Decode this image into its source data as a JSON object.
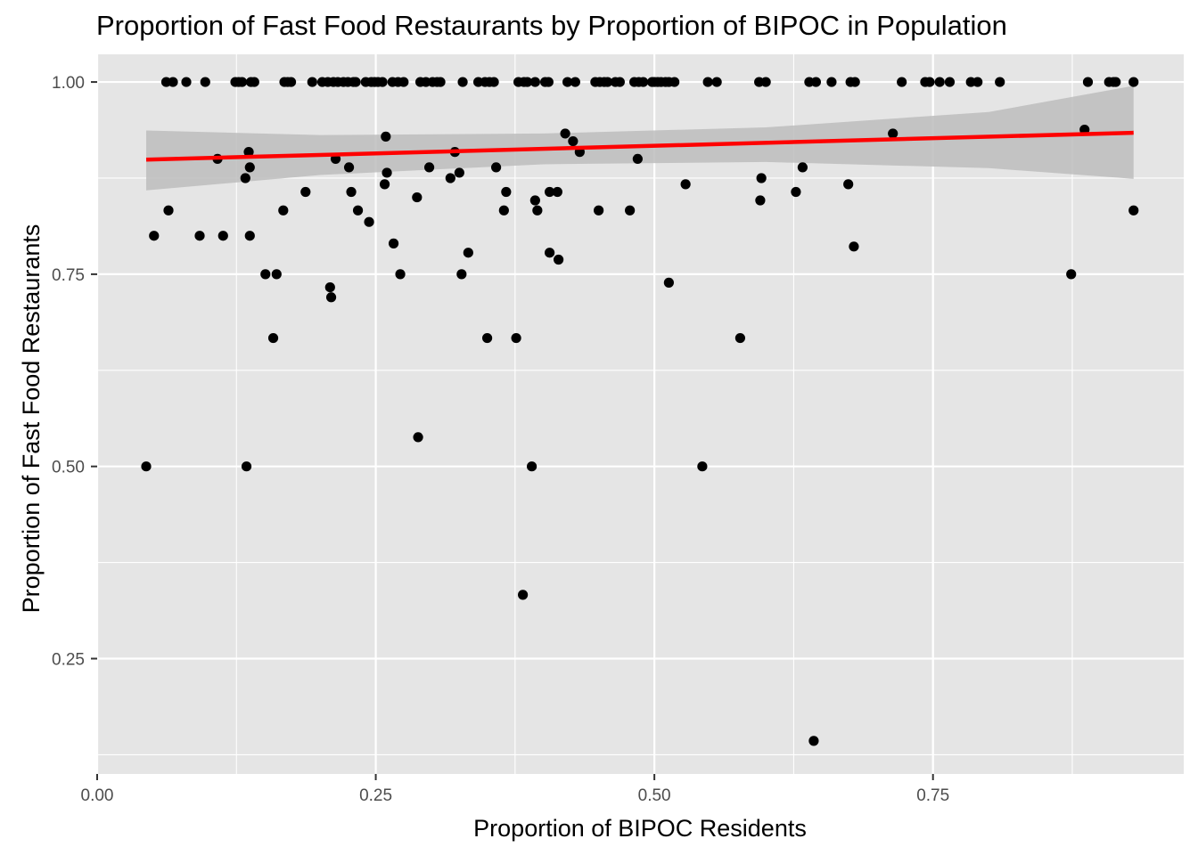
{
  "chart_data": {
    "type": "scatter",
    "title": "Proportion of Fast Food Restaurants by Proportion of BIPOC in Population",
    "xlabel": "Proportion of BIPOC Residents",
    "ylabel": "Proportion of Fast Food Restaurants",
    "xlim": [
      0,
      0.975
    ],
    "ylim": [
      0.1,
      1.036
    ],
    "x_ticks": [
      0.0,
      0.25,
      0.5,
      0.75
    ],
    "x_tick_labels": [
      "0.00",
      "0.25",
      "0.50",
      "0.75"
    ],
    "y_ticks": [
      0.25,
      0.5,
      0.75,
      1.0
    ],
    "y_tick_labels": [
      "0.25",
      "0.50",
      "0.75",
      "1.00"
    ],
    "grid": true,
    "legend": "none",
    "colors": {
      "panel_background": "#e5e5e5",
      "grid_major": "#ffffff",
      "points": "#000000",
      "fit_line": "#ff0000",
      "confidence_band": "#bdbdbd"
    },
    "fit_line": {
      "method": "linear",
      "x": [
        0.044,
        0.93
      ],
      "y": [
        0.899,
        0.934
      ]
    },
    "confidence_band": {
      "x": [
        0.044,
        0.2,
        0.4,
        0.6,
        0.8,
        0.93
      ],
      "lower": [
        0.859,
        0.879,
        0.893,
        0.896,
        0.888,
        0.874
      ],
      "upper": [
        0.937,
        0.931,
        0.933,
        0.941,
        0.961,
        0.995
      ]
    },
    "points": [
      {
        "x": 0.044,
        "y": 0.5
      },
      {
        "x": 0.051,
        "y": 0.8
      },
      {
        "x": 0.062,
        "y": 1.0
      },
      {
        "x": 0.064,
        "y": 0.833
      },
      {
        "x": 0.068,
        "y": 1.0
      },
      {
        "x": 0.08,
        "y": 1.0
      },
      {
        "x": 0.092,
        "y": 0.8
      },
      {
        "x": 0.097,
        "y": 1.0
      },
      {
        "x": 0.108,
        "y": 0.9
      },
      {
        "x": 0.113,
        "y": 0.8
      },
      {
        "x": 0.124,
        "y": 1.0
      },
      {
        "x": 0.127,
        "y": 1.0
      },
      {
        "x": 0.13,
        "y": 1.0
      },
      {
        "x": 0.133,
        "y": 0.875
      },
      {
        "x": 0.134,
        "y": 0.5
      },
      {
        "x": 0.136,
        "y": 0.909
      },
      {
        "x": 0.137,
        "y": 0.8
      },
      {
        "x": 0.137,
        "y": 0.889
      },
      {
        "x": 0.138,
        "y": 1.0
      },
      {
        "x": 0.141,
        "y": 1.0
      },
      {
        "x": 0.151,
        "y": 0.75
      },
      {
        "x": 0.158,
        "y": 0.667
      },
      {
        "x": 0.161,
        "y": 0.75
      },
      {
        "x": 0.167,
        "y": 0.833
      },
      {
        "x": 0.168,
        "y": 1.0
      },
      {
        "x": 0.171,
        "y": 1.0
      },
      {
        "x": 0.174,
        "y": 1.0
      },
      {
        "x": 0.187,
        "y": 0.857
      },
      {
        "x": 0.193,
        "y": 1.0
      },
      {
        "x": 0.202,
        "y": 1.0
      },
      {
        "x": 0.207,
        "y": 1.0
      },
      {
        "x": 0.209,
        "y": 0.733
      },
      {
        "x": 0.21,
        "y": 0.72
      },
      {
        "x": 0.212,
        "y": 1.0
      },
      {
        "x": 0.214,
        "y": 0.9
      },
      {
        "x": 0.216,
        "y": 1.0
      },
      {
        "x": 0.221,
        "y": 1.0
      },
      {
        "x": 0.225,
        "y": 1.0
      },
      {
        "x": 0.226,
        "y": 0.889
      },
      {
        "x": 0.228,
        "y": 0.857
      },
      {
        "x": 0.23,
        "y": 1.0
      },
      {
        "x": 0.232,
        "y": 1.0
      },
      {
        "x": 0.234,
        "y": 0.833
      },
      {
        "x": 0.241,
        "y": 1.0
      },
      {
        "x": 0.244,
        "y": 0.818
      },
      {
        "x": 0.246,
        "y": 1.0
      },
      {
        "x": 0.249,
        "y": 1.0
      },
      {
        "x": 0.252,
        "y": 1.0
      },
      {
        "x": 0.256,
        "y": 1.0
      },
      {
        "x": 0.258,
        "y": 0.867
      },
      {
        "x": 0.259,
        "y": 0.929
      },
      {
        "x": 0.26,
        "y": 0.882
      },
      {
        "x": 0.265,
        "y": 1.0
      },
      {
        "x": 0.266,
        "y": 0.79
      },
      {
        "x": 0.27,
        "y": 1.0
      },
      {
        "x": 0.272,
        "y": 0.75
      },
      {
        "x": 0.275,
        "y": 1.0
      },
      {
        "x": 0.287,
        "y": 0.85
      },
      {
        "x": 0.288,
        "y": 0.538
      },
      {
        "x": 0.29,
        "y": 1.0
      },
      {
        "x": 0.295,
        "y": 1.0
      },
      {
        "x": 0.298,
        "y": 0.889
      },
      {
        "x": 0.301,
        "y": 1.0
      },
      {
        "x": 0.305,
        "y": 1.0
      },
      {
        "x": 0.308,
        "y": 1.0
      },
      {
        "x": 0.317,
        "y": 0.875
      },
      {
        "x": 0.321,
        "y": 0.909
      },
      {
        "x": 0.325,
        "y": 0.882
      },
      {
        "x": 0.327,
        "y": 0.75
      },
      {
        "x": 0.328,
        "y": 1.0
      },
      {
        "x": 0.333,
        "y": 0.778
      },
      {
        "x": 0.342,
        "y": 1.0
      },
      {
        "x": 0.348,
        "y": 1.0
      },
      {
        "x": 0.35,
        "y": 0.667
      },
      {
        "x": 0.352,
        "y": 1.0
      },
      {
        "x": 0.356,
        "y": 1.0
      },
      {
        "x": 0.358,
        "y": 0.889
      },
      {
        "x": 0.365,
        "y": 0.833
      },
      {
        "x": 0.367,
        "y": 0.857
      },
      {
        "x": 0.376,
        "y": 0.667
      },
      {
        "x": 0.378,
        "y": 1.0
      },
      {
        "x": 0.382,
        "y": 0.333
      },
      {
        "x": 0.383,
        "y": 1.0
      },
      {
        "x": 0.386,
        "y": 1.0
      },
      {
        "x": 0.39,
        "y": 0.5
      },
      {
        "x": 0.393,
        "y": 1.0
      },
      {
        "x": 0.393,
        "y": 0.846
      },
      {
        "x": 0.395,
        "y": 0.833
      },
      {
        "x": 0.402,
        "y": 1.0
      },
      {
        "x": 0.405,
        "y": 1.0
      },
      {
        "x": 0.406,
        "y": 0.857
      },
      {
        "x": 0.406,
        "y": 0.778
      },
      {
        "x": 0.413,
        "y": 0.857
      },
      {
        "x": 0.414,
        "y": 0.769
      },
      {
        "x": 0.42,
        "y": 0.933
      },
      {
        "x": 0.422,
        "y": 1.0
      },
      {
        "x": 0.427,
        "y": 0.923
      },
      {
        "x": 0.429,
        "y": 1.0
      },
      {
        "x": 0.433,
        "y": 0.909
      },
      {
        "x": 0.447,
        "y": 1.0
      },
      {
        "x": 0.45,
        "y": 0.833
      },
      {
        "x": 0.451,
        "y": 1.0
      },
      {
        "x": 0.455,
        "y": 1.0
      },
      {
        "x": 0.458,
        "y": 1.0
      },
      {
        "x": 0.465,
        "y": 1.0
      },
      {
        "x": 0.469,
        "y": 1.0
      },
      {
        "x": 0.478,
        "y": 0.833
      },
      {
        "x": 0.482,
        "y": 1.0
      },
      {
        "x": 0.485,
        "y": 0.9
      },
      {
        "x": 0.486,
        "y": 1.0
      },
      {
        "x": 0.49,
        "y": 1.0
      },
      {
        "x": 0.498,
        "y": 1.0
      },
      {
        "x": 0.5,
        "y": 1.0
      },
      {
        "x": 0.503,
        "y": 1.0
      },
      {
        "x": 0.506,
        "y": 1.0
      },
      {
        "x": 0.51,
        "y": 1.0
      },
      {
        "x": 0.513,
        "y": 0.739
      },
      {
        "x": 0.513,
        "y": 1.0
      },
      {
        "x": 0.518,
        "y": 1.0
      },
      {
        "x": 0.528,
        "y": 0.867
      },
      {
        "x": 0.543,
        "y": 0.5
      },
      {
        "x": 0.548,
        "y": 1.0
      },
      {
        "x": 0.556,
        "y": 1.0
      },
      {
        "x": 0.577,
        "y": 0.667
      },
      {
        "x": 0.594,
        "y": 1.0
      },
      {
        "x": 0.595,
        "y": 0.846
      },
      {
        "x": 0.596,
        "y": 0.875
      },
      {
        "x": 0.6,
        "y": 1.0
      },
      {
        "x": 0.627,
        "y": 0.857
      },
      {
        "x": 0.633,
        "y": 0.889
      },
      {
        "x": 0.639,
        "y": 1.0
      },
      {
        "x": 0.643,
        "y": 0.143
      },
      {
        "x": 0.645,
        "y": 1.0
      },
      {
        "x": 0.659,
        "y": 1.0
      },
      {
        "x": 0.674,
        "y": 0.867
      },
      {
        "x": 0.676,
        "y": 1.0
      },
      {
        "x": 0.679,
        "y": 0.786
      },
      {
        "x": 0.68,
        "y": 1.0
      },
      {
        "x": 0.714,
        "y": 0.933
      },
      {
        "x": 0.722,
        "y": 1.0
      },
      {
        "x": 0.743,
        "y": 1.0
      },
      {
        "x": 0.747,
        "y": 1.0
      },
      {
        "x": 0.756,
        "y": 1.0
      },
      {
        "x": 0.765,
        "y": 1.0
      },
      {
        "x": 0.784,
        "y": 1.0
      },
      {
        "x": 0.79,
        "y": 1.0
      },
      {
        "x": 0.81,
        "y": 1.0
      },
      {
        "x": 0.874,
        "y": 0.75
      },
      {
        "x": 0.886,
        "y": 0.938
      },
      {
        "x": 0.889,
        "y": 1.0
      },
      {
        "x": 0.908,
        "y": 1.0
      },
      {
        "x": 0.912,
        "y": 1.0
      },
      {
        "x": 0.914,
        "y": 1.0
      },
      {
        "x": 0.93,
        "y": 1.0
      },
      {
        "x": 0.93,
        "y": 0.833
      }
    ]
  }
}
